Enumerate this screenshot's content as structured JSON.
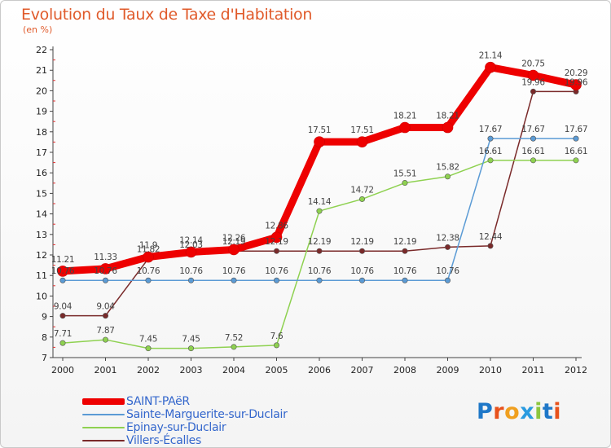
{
  "header": {
    "title": "Evolution du Taux de Taxe d'Habitation",
    "subtitle": "(en %)"
  },
  "logo": {
    "text": "Proxiti",
    "letters": [
      "P",
      "r",
      "o",
      "x",
      "i",
      "t",
      "i"
    ],
    "letter_colors": [
      "#1f78c8",
      "#e8521c",
      "#f0a020",
      "#2a9be0",
      "#8cc63f",
      "#1f78c8",
      "#e8521c"
    ]
  },
  "chart_data": {
    "type": "line",
    "x": [
      "2000",
      "2001",
      "2002",
      "2003",
      "2004",
      "2005",
      "2006",
      "2007",
      "2008",
      "2009",
      "2010",
      "2011",
      "2012"
    ],
    "ylim": [
      7,
      22
    ],
    "yticks": [
      "7",
      "8",
      "9",
      "10",
      "11",
      "12",
      "13",
      "14",
      "15",
      "16",
      "17",
      "18",
      "19",
      "20",
      "21",
      "22"
    ],
    "grid": false,
    "legend_position": "bottom-left",
    "series": [
      {
        "name": "SAINT-PAëR",
        "color": "#ee0000",
        "values": [
          11.21,
          11.33,
          11.9,
          12.14,
          12.26,
          12.86,
          17.51,
          17.51,
          18.21,
          18.21,
          21.14,
          20.75,
          20.29
        ],
        "labels": [
          "11.21",
          "11.33",
          "11.9",
          "12.14",
          "12.26",
          "12.86",
          "17.51",
          "17.51",
          "18.21",
          "18.21",
          "21.14",
          "20.75",
          "20.29"
        ]
      },
      {
        "name": "Sainte-Marguerite-sur-Duclair",
        "color": "#5b9bd5",
        "values": [
          10.76,
          10.76,
          10.76,
          10.76,
          10.76,
          10.76,
          10.76,
          10.76,
          10.76,
          10.76,
          17.67,
          17.67,
          17.67
        ],
        "labels": [
          "10.76",
          "10.76",
          "10.76",
          "10.76",
          "10.76",
          "10.76",
          "10.76",
          "10.76",
          "10.76",
          "10.76",
          "17.67",
          "17.67",
          "17.67"
        ]
      },
      {
        "name": "Epinay-sur-Duclair",
        "color": "#8ed150",
        "values": [
          7.71,
          7.87,
          7.45,
          7.45,
          7.52,
          7.6,
          14.14,
          14.72,
          15.51,
          15.82,
          16.61,
          16.61,
          16.61
        ],
        "labels": [
          "7.71",
          "7.87",
          "7.45",
          "7.45",
          "7.52",
          "7.6",
          "14.14",
          "14.72",
          "15.51",
          "15.82",
          "16.61",
          "16.61",
          "16.61"
        ]
      },
      {
        "name": "Villers-Écalles",
        "color": "#7a2a2a",
        "values": [
          9.04,
          9.04,
          11.82,
          12.03,
          12.19,
          12.19,
          12.19,
          12.19,
          12.19,
          12.38,
          12.44,
          19.96,
          19.96
        ],
        "labels": [
          "9.04",
          "9.04",
          "11.82",
          "12.03",
          "12.19",
          "12.19",
          "12.19",
          "12.19",
          "12.19",
          "12.38",
          "12.44",
          "19.96",
          "19.96"
        ]
      }
    ]
  }
}
